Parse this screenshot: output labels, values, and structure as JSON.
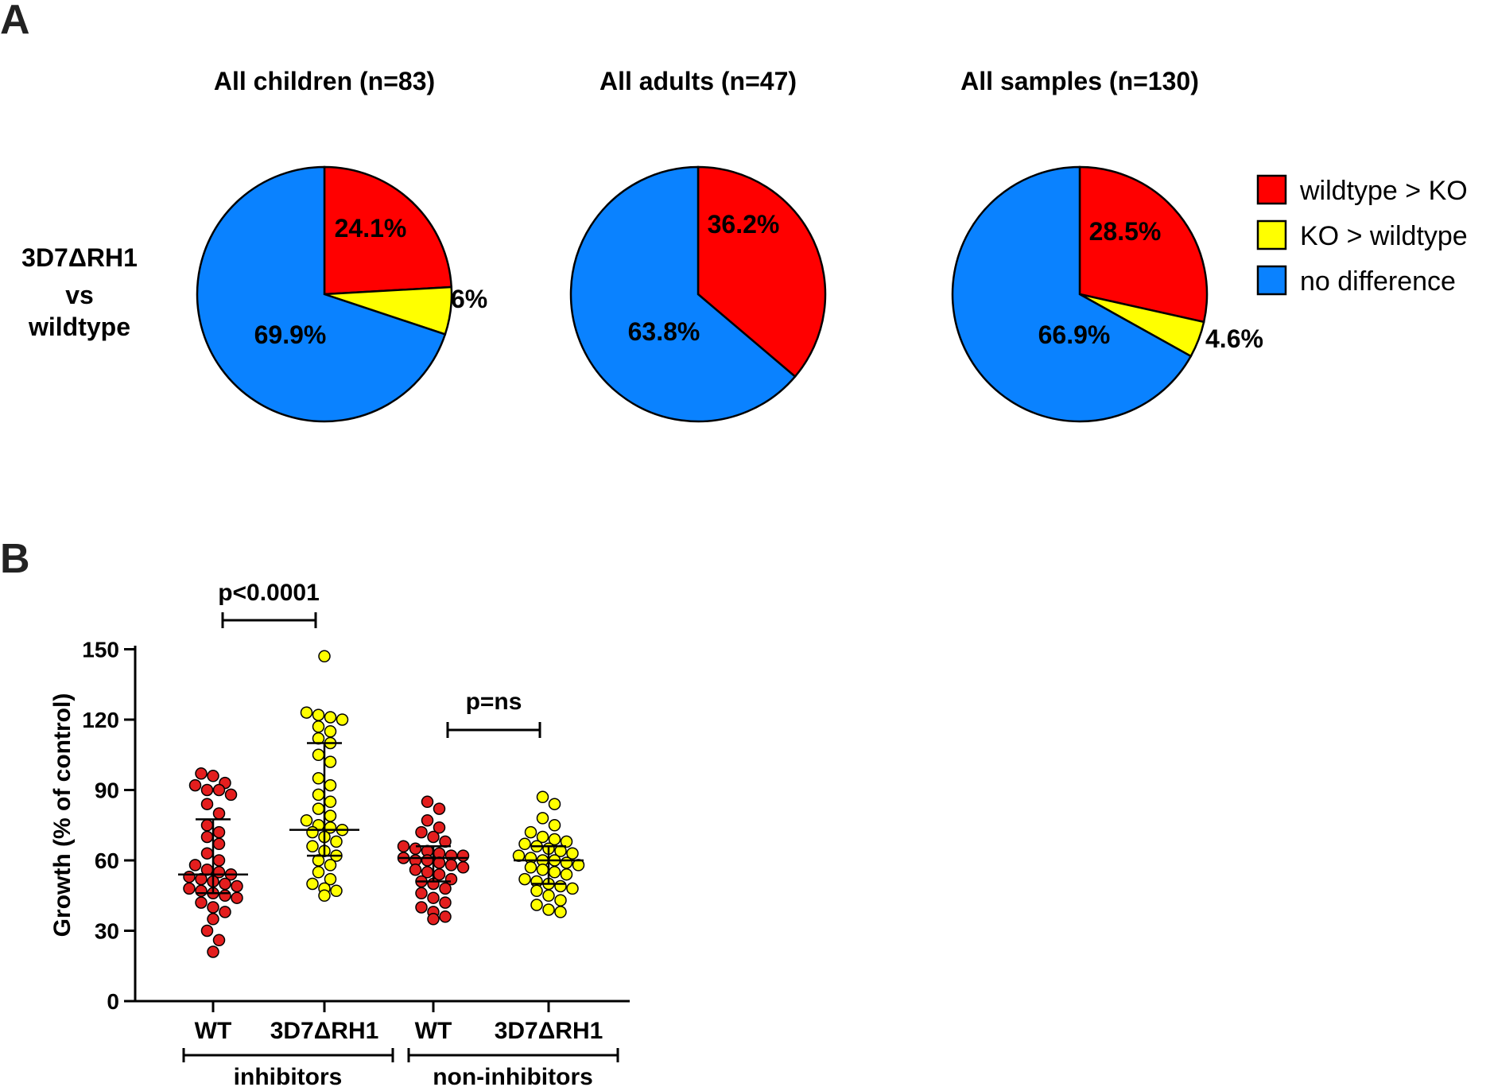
{
  "panels": {
    "a": "A",
    "b": "B"
  },
  "chart_data": [
    {
      "type": "pie",
      "row_label": [
        "3D7ΔRH1",
        "vs",
        "wildtype"
      ],
      "legend": [
        {
          "label": "wildtype > KO",
          "color": "#ff0000"
        },
        {
          "label": "KO > wildtype",
          "color": "#ffff00"
        },
        {
          "label": "no difference",
          "color": "#0a82ff"
        }
      ],
      "pies": [
        {
          "title": "All children (n=83)",
          "slices": [
            {
              "name": "wildtype > KO",
              "value": 24.1,
              "label": "24.1%",
              "color": "#ff0000"
            },
            {
              "name": "KO > wildtype",
              "value": 6.0,
              "label": "6%",
              "color": "#ffff00"
            },
            {
              "name": "no difference",
              "value": 69.9,
              "label": "69.9%",
              "color": "#0a82ff"
            }
          ]
        },
        {
          "title": "All adults (n=47)",
          "slices": [
            {
              "name": "wildtype > KO",
              "value": 36.2,
              "label": "36.2%",
              "color": "#ff0000"
            },
            {
              "name": "no difference",
              "value": 63.8,
              "label": "63.8%",
              "color": "#0a82ff"
            }
          ]
        },
        {
          "title": "All samples (n=130)",
          "slices": [
            {
              "name": "wildtype > KO",
              "value": 28.5,
              "label": "28.5%",
              "color": "#ff0000"
            },
            {
              "name": "KO > wildtype",
              "value": 4.6,
              "label": "4.6%",
              "color": "#ffff00"
            },
            {
              "name": "no difference",
              "value": 66.9,
              "label": "66.9%",
              "color": "#0a82ff"
            }
          ]
        }
      ]
    },
    {
      "type": "scatter",
      "ylabel": "Growth (% of control)",
      "ylim": [
        0,
        150
      ],
      "yticks": [
        0,
        30,
        60,
        90,
        120,
        150
      ],
      "groups": [
        {
          "category": "WT",
          "group": "inhibitors",
          "color": "#e41e1e",
          "median": 54,
          "q1": 46,
          "q3": 77.5,
          "values": [
            97,
            96,
            93,
            92,
            90,
            90,
            88,
            84,
            80,
            75,
            72,
            70,
            67,
            63,
            60,
            58,
            56,
            55,
            54,
            53,
            52,
            51,
            50,
            49,
            48,
            47,
            46,
            45,
            44,
            42,
            40,
            38,
            35,
            30,
            26,
            21
          ]
        },
        {
          "category": "3D7ΔRH1",
          "group": "inhibitors",
          "color": "#ffff00",
          "median": 73,
          "q1": 62,
          "q3": 110,
          "values": [
            147,
            123,
            122,
            121,
            120,
            117,
            115,
            112,
            110,
            105,
            102,
            95,
            92,
            88,
            85,
            82,
            79,
            77,
            75,
            74,
            73,
            72,
            70,
            68,
            66,
            64,
            62,
            60,
            58,
            55,
            52,
            50,
            48,
            47,
            45
          ]
        },
        {
          "category": "WT",
          "group": "non-inhibitors",
          "color": "#e41e1e",
          "median": 61,
          "q1": 51,
          "q3": 66,
          "values": [
            85,
            82,
            77,
            74,
            72,
            70,
            68,
            66,
            65,
            64,
            63,
            62,
            62,
            61,
            60,
            60,
            59,
            58,
            57,
            56,
            55,
            54,
            52,
            51,
            50,
            48,
            46,
            44,
            42,
            40,
            38,
            36,
            35
          ]
        },
        {
          "category": "3D7ΔRH1",
          "group": "non-inhibitors",
          "color": "#ffff00",
          "median": 60,
          "q1": 50,
          "q3": 66,
          "values": [
            87,
            84,
            78,
            75,
            72,
            70,
            69,
            68,
            67,
            66,
            65,
            64,
            63,
            62,
            61,
            60,
            60,
            59,
            58,
            57,
            56,
            55,
            54,
            52,
            51,
            50,
            49,
            48,
            47,
            45,
            43,
            41,
            39,
            38
          ]
        }
      ],
      "group_labels": [
        "inhibitors",
        "non-inhibitors"
      ],
      "comparisons": [
        {
          "between": [
            0,
            1
          ],
          "label": "p<0.0001"
        },
        {
          "between": [
            2,
            3
          ],
          "label": "p=ns"
        }
      ]
    }
  ]
}
